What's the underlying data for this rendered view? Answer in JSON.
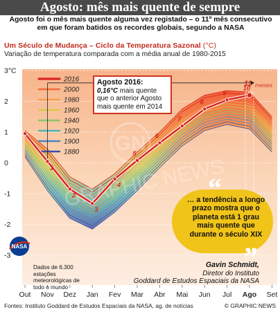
{
  "title": "Agosto: mês mais quente de sempre",
  "subtitle": "Agosto foi o mês mais quente alguma vez registado – o 11º mês consecutivo em que foram batidos os recordes globais, segundo a NASA",
  "section": {
    "label": "Um Século de Mudança – Ciclo da Temperatura Sazonal",
    "unit": "(°C)"
  },
  "description": "Variação de temperatura comparada com a média anual de 1980-2015",
  "callout": {
    "heading": "Agosto 2016:",
    "value": "0,16°C",
    "body": "mais quente que o anterior Agosto mais quente em 2014"
  },
  "streak_label": {
    "count": "11",
    "unit": "meses"
  },
  "quote": {
    "text": "… a tendência a longo prazo mostra que o planeta está 1 grau mais quente que durante o século XIX",
    "open_mark": "“",
    "close_mark": "”",
    "author": "Gavin Schmidt,",
    "role_line1": "Diretor do Instituto",
    "role_line2": "Goddard de Estudos Espaciais da NASA"
  },
  "nasa": {
    "logo_text": "NASA",
    "note": "Dados de 6.300 estações meteorológicas de todo o mundo"
  },
  "source": "Fontes: Instituto Goddard de Estudos Espaciais da NASA, ag. de notícias",
  "credit": "© GRAPHIC NEWS",
  "watermark": {
    "letters": "GN",
    "text": "GRAPHIC NEWS"
  },
  "colors": {
    "accent": "#d0321d",
    "quote_bg": "#f0c419",
    "title_bg": "#4a4a4a"
  },
  "chart_data": {
    "type": "line",
    "title": "",
    "xlabel": "",
    "ylabel": "",
    "y_unit_label": "3°C",
    "categories": [
      "Out",
      "Nov",
      "Dez",
      "Jan",
      "Fev",
      "Mar",
      "Abr",
      "Mai",
      "Jun",
      "Jul",
      "Ago",
      "Set"
    ],
    "highlight_category": "Ago",
    "ylim": [
      -3,
      3
    ],
    "yticks": [
      3,
      2,
      1,
      0,
      -1,
      -2,
      -3
    ],
    "ytick_labels": [
      "3°C",
      "2",
      "1",
      "0",
      "-1",
      "-2",
      "-3"
    ],
    "grid": true,
    "legend": {
      "placement": "top-left",
      "entries": [
        {
          "label": "2016",
          "color": "#d8261c"
        },
        {
          "label": "2000",
          "color": "#f26b3a"
        },
        {
          "label": "1980",
          "color": "#f5a04a"
        },
        {
          "label": "1960",
          "color": "#d9c94a"
        },
        {
          "label": "1940",
          "color": "#8cc46a"
        },
        {
          "label": "1920",
          "color": "#4fb3b0"
        },
        {
          "label": "1900",
          "color": "#4d86c4"
        },
        {
          "label": "1880",
          "color": "#3a4fa8"
        }
      ]
    },
    "series_2016": {
      "name": "2016",
      "x": [
        0,
        1,
        2,
        3,
        4,
        5,
        6,
        7,
        8,
        9,
        10
      ],
      "values": [
        0.95,
        0.05,
        -0.85,
        -1.32,
        -0.52,
        0.08,
        0.65,
        1.2,
        1.75,
        2.05,
        2.2
      ],
      "labels": [
        "",
        "1",
        "2",
        "3",
        "4",
        "5",
        "6",
        "7",
        "8",
        "9",
        "10"
      ]
    },
    "background_band": {
      "description_free": true,
      "upper": [
        1.05,
        0.45,
        -0.45,
        -0.85,
        -0.35,
        0.35,
        1.0,
        1.75,
        2.2,
        2.35,
        2.3,
        1.5
      ],
      "lower": [
        0.2,
        -0.9,
        -1.8,
        -2.15,
        -1.6,
        -0.9,
        -0.15,
        0.55,
        1.05,
        1.25,
        1.1,
        0.35
      ]
    }
  }
}
